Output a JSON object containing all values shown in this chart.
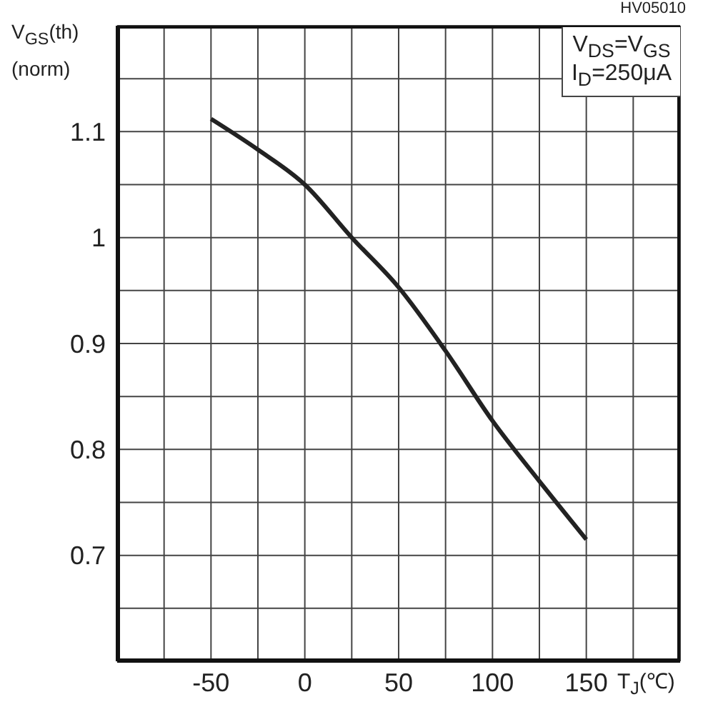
{
  "chart_data": {
    "type": "line",
    "xlabel": "T$_{J}$(℃)",
    "ylabel": "V$_{GS}$(th) (norm)",
    "annotations": [
      "HV05010",
      "V$_{DS}$=V$_{GS}$",
      "I$_{D}$=250μA"
    ],
    "x": [
      -50,
      -25,
      0,
      25,
      50,
      75,
      100,
      125,
      150
    ],
    "series": [
      {
        "color": "#222222",
        "values": [
          1.112,
          1.083,
          1.05,
          1.0,
          0.953,
          0.893,
          0.827,
          0.77,
          0.715
        ]
      }
    ],
    "xlim": [
      -100,
      200
    ],
    "xticks": [
      {
        "value": -100,
        "label": null
      },
      {
        "value": -75,
        "label": null
      },
      -50,
      {
        "value": -25,
        "label": null
      },
      0,
      {
        "value": 25,
        "label": null
      },
      50,
      {
        "value": 75,
        "label": null
      },
      100,
      {
        "value": 125,
        "label": null
      },
      150,
      {
        "value": 175,
        "label": null
      },
      {
        "value": 200,
        "label": null
      }
    ],
    "ylim": [
      0.6,
      1.2
    ],
    "yticks": [
      {
        "value": 0.6,
        "label": null
      },
      {
        "value": 0.65,
        "label": null
      },
      0.7,
      {
        "value": 0.75,
        "label": null
      },
      0.8,
      {
        "value": 0.85,
        "label": null
      },
      0.9,
      {
        "value": 0.95,
        "label": null
      },
      1,
      {
        "value": 1.05,
        "label": null
      },
      1.1,
      {
        "value": 1.15,
        "label": null
      },
      {
        "value": 1.2,
        "label": null
      }
    ],
    "grid": true,
    "marker": "none",
    "line_style": "solid"
  }
}
